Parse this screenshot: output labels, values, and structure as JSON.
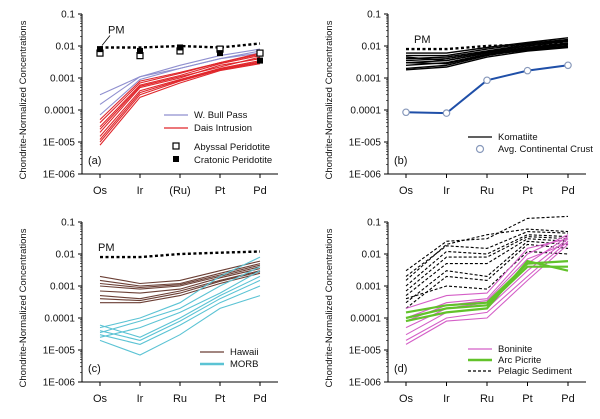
{
  "chart_data": [
    {
      "panel_label": "(a)",
      "type": "line",
      "ylabel": "Chondrite-Normalized Concentrations",
      "categories": [
        "Os",
        "Ir",
        "(Ru)",
        "Pt",
        "Pd"
      ],
      "yscale": "log",
      "ylim": [
        1e-06,
        0.1
      ],
      "ytick_labels": [
        "1E-006",
        "1E-005",
        "0.0001",
        "0.001",
        "0.01",
        "0.1"
      ],
      "pm_label": "PM",
      "pm_values": [
        0.009,
        0.009,
        0.01,
        0.009,
        0.012
      ],
      "legend": [
        {
          "label": "W. Bull Pass",
          "color": "#8f8fcf",
          "kind": "line"
        },
        {
          "label": "Dais Intrusion",
          "color": "#e0262b",
          "kind": "line"
        },
        {
          "label": "Abyssal Peridotite",
          "kind": "open-square"
        },
        {
          "label": "Cratonic Peridotite",
          "kind": "filled-square"
        }
      ],
      "series": [
        {
          "group": "W. Bull Pass",
          "color": "#8f8fcf",
          "values": [
            0.0003,
            0.0011,
            0.002,
            0.004,
            0.007
          ]
        },
        {
          "group": "W. Bull Pass",
          "color": "#8f8fcf",
          "values": [
            0.00015,
            0.0011,
            0.0025,
            0.005,
            0.008
          ]
        },
        {
          "group": "W. Bull Pass",
          "color": "#8f8fcf",
          "values": [
            7e-05,
            0.0009,
            0.002,
            0.004,
            0.006
          ]
        },
        {
          "group": "Dais Intrusion",
          "color": "#e0262b",
          "values": [
            5e-05,
            0.0008,
            0.0015,
            0.003,
            0.006
          ]
        },
        {
          "group": "Dais Intrusion",
          "color": "#e0262b",
          "values": [
            3e-05,
            0.0006,
            0.0012,
            0.0028,
            0.005
          ]
        },
        {
          "group": "Dais Intrusion",
          "color": "#e0262b",
          "values": [
            2e-05,
            0.0005,
            0.001,
            0.0025,
            0.004
          ]
        },
        {
          "group": "Dais Intrusion",
          "color": "#e0262b",
          "values": [
            1.5e-05,
            0.0004,
            0.0009,
            0.002,
            0.0035
          ]
        },
        {
          "group": "Dais Intrusion",
          "color": "#e0262b",
          "values": [
            1e-05,
            0.0003,
            0.0008,
            0.0018,
            0.003
          ]
        },
        {
          "group": "Dais Intrusion",
          "color": "#e0262b",
          "values": [
            8e-06,
            0.00025,
            0.0007,
            0.0017,
            0.0028
          ]
        },
        {
          "group": "Dais Intrusion",
          "color": "#e0262b",
          "values": [
            4e-05,
            0.0007,
            0.0014,
            0.003,
            0.0055
          ]
        },
        {
          "group": "Dais Intrusion",
          "color": "#e0262b",
          "values": [
            2.5e-05,
            0.00055,
            0.0011,
            0.0022,
            0.0045
          ]
        },
        {
          "group": "Dais Intrusion",
          "color": "#e0262b",
          "values": [
            1.2e-05,
            0.00035,
            0.00085,
            0.0019,
            0.0032
          ]
        }
      ],
      "abyssal_points": [
        0.006,
        0.005,
        0.007,
        0.008,
        0.006
      ],
      "cratonic_points": [
        0.008,
        0.007,
        0.009,
        0.006,
        0.0035
      ]
    },
    {
      "panel_label": "(b)",
      "type": "line",
      "ylabel": "Chondrite-Normalized Concentrations",
      "categories": [
        "Os",
        "Ir",
        "Ru",
        "Pt",
        "Pd"
      ],
      "yscale": "log",
      "ylim": [
        1e-06,
        0.1
      ],
      "ytick_labels": [
        "1E-006",
        "1E-005",
        "0.0001",
        "0.001",
        "0.01",
        "0.1"
      ],
      "pm_label": "PM",
      "pm_values": [
        0.008,
        0.008,
        0.01,
        0.011,
        0.012
      ],
      "legend": [
        {
          "label": "Komatiite",
          "color": "#000000",
          "kind": "line"
        },
        {
          "label": "Avg. Continental Crust",
          "color": "#8899bb",
          "kind": "open-circle"
        }
      ],
      "series": [
        {
          "group": "Komatiite",
          "color": "#000000",
          "values": [
            0.006,
            0.006,
            0.009,
            0.013,
            0.018
          ]
        },
        {
          "group": "Komatiite",
          "color": "#000000",
          "values": [
            0.005,
            0.005,
            0.008,
            0.012,
            0.016
          ]
        },
        {
          "group": "Komatiite",
          "color": "#000000",
          "values": [
            0.004,
            0.0045,
            0.007,
            0.011,
            0.015
          ]
        },
        {
          "group": "Komatiite",
          "color": "#000000",
          "values": [
            0.0035,
            0.004,
            0.0065,
            0.01,
            0.014
          ]
        },
        {
          "group": "Komatiite",
          "color": "#000000",
          "values": [
            0.003,
            0.0035,
            0.006,
            0.009,
            0.012
          ]
        },
        {
          "group": "Komatiite",
          "color": "#000000",
          "values": [
            0.0025,
            0.003,
            0.0055,
            0.0085,
            0.011
          ]
        },
        {
          "group": "Komatiite",
          "color": "#000000",
          "values": [
            0.002,
            0.0025,
            0.005,
            0.008,
            0.01
          ]
        },
        {
          "group": "Komatiite",
          "color": "#000000",
          "values": [
            0.0018,
            0.0022,
            0.0045,
            0.007,
            0.009
          ]
        },
        {
          "group": "Komatiite",
          "color": "#000000",
          "values": [
            0.0045,
            0.0035,
            0.006,
            0.009,
            0.0125
          ]
        },
        {
          "group": "Komatiite",
          "color": "#000000",
          "values": [
            0.003,
            0.0028,
            0.0052,
            0.0075,
            0.0095
          ]
        }
      ],
      "continental_crust": [
        8.5e-05,
        8e-05,
        0.00085,
        0.0017,
        0.0025
      ]
    },
    {
      "panel_label": "(c)",
      "type": "line",
      "ylabel": "Chondrite-Normalized Concentrations",
      "categories": [
        "Os",
        "Ir",
        "Ru",
        "Pt",
        "Pd"
      ],
      "yscale": "log",
      "ylim": [
        1e-06,
        0.1
      ],
      "ytick_labels": [
        "1E-006",
        "1E-005",
        "0.0001",
        "0.001",
        "0.01",
        "0.1"
      ],
      "pm_label": "PM",
      "pm_values": [
        0.008,
        0.008,
        0.01,
        0.011,
        0.012
      ],
      "legend": [
        {
          "label": "Hawaii",
          "color": "#6b3f35",
          "kind": "line"
        },
        {
          "label": "MORB",
          "color": "#5bc3d4",
          "kind": "line"
        }
      ],
      "series": [
        {
          "group": "Hawaii",
          "color": "#6b3f35",
          "values": [
            0.002,
            0.0012,
            0.0015,
            0.003,
            0.006
          ]
        },
        {
          "group": "Hawaii",
          "color": "#6b3f35",
          "values": [
            0.0015,
            0.001,
            0.0012,
            0.0025,
            0.005
          ]
        },
        {
          "group": "Hawaii",
          "color": "#6b3f35",
          "values": [
            0.001,
            0.0008,
            0.001,
            0.002,
            0.004
          ]
        },
        {
          "group": "Hawaii",
          "color": "#6b3f35",
          "values": [
            0.0007,
            0.0006,
            0.0008,
            0.0018,
            0.0035
          ]
        },
        {
          "group": "Hawaii",
          "color": "#6b3f35",
          "values": [
            0.0005,
            0.0004,
            0.0007,
            0.0015,
            0.003
          ]
        },
        {
          "group": "Hawaii",
          "color": "#6b3f35",
          "values": [
            0.0003,
            0.0003,
            0.0005,
            0.0012,
            0.0025
          ]
        },
        {
          "group": "Hawaii",
          "color": "#6b3f35",
          "values": [
            0.0012,
            0.0009,
            0.0011,
            0.0022,
            0.0045
          ]
        },
        {
          "group": "Hawaii",
          "color": "#6b3f35",
          "values": [
            0.0004,
            0.00035,
            0.0006,
            0.0014,
            0.0028
          ]
        },
        {
          "group": "MORB",
          "color": "#5bc3d4",
          "values": [
            6e-05,
            2.5e-05,
            0.0001,
            0.0005,
            0.002
          ]
        },
        {
          "group": "MORB",
          "color": "#5bc3d4",
          "values": [
            4e-05,
            2e-05,
            8e-05,
            0.0004,
            0.0015
          ]
        },
        {
          "group": "MORB",
          "color": "#5bc3d4",
          "values": [
            3e-05,
            1.5e-05,
            6e-05,
            0.0003,
            0.001
          ]
        },
        {
          "group": "MORB",
          "color": "#5bc3d4",
          "values": [
            2e-05,
            7e-06,
            3e-05,
            0.0002,
            0.0005
          ]
        },
        {
          "group": "MORB",
          "color": "#5bc3d4",
          "values": [
            5e-05,
            0.0001,
            0.0003,
            0.002,
            0.008
          ]
        },
        {
          "group": "MORB",
          "color": "#5bc3d4",
          "values": [
            3.5e-05,
            8e-05,
            0.0002,
            0.001,
            0.004
          ]
        },
        {
          "group": "MORB",
          "color": "#5bc3d4",
          "values": [
            2.5e-05,
            5e-05,
            0.00015,
            0.0006,
            0.003
          ]
        }
      ]
    },
    {
      "panel_label": "(d)",
      "type": "line",
      "ylabel": "Chondrite-Normalized Concentrations",
      "categories": [
        "Os",
        "Ir",
        "Ru",
        "Pt",
        "Pd"
      ],
      "yscale": "log",
      "ylim": [
        1e-06,
        0.1
      ],
      "ytick_labels": [
        "1E-006",
        "1E-005",
        "0.0001",
        "0.001",
        "0.01",
        "0.1"
      ],
      "legend": [
        {
          "label": "Boninite",
          "color": "#d45fc7",
          "kind": "line"
        },
        {
          "label": "Arc Picrite",
          "color": "#62c22a",
          "kind": "line"
        },
        {
          "label": "Pelagic Sediment",
          "color": "#000000",
          "kind": "dashed-line"
        }
      ],
      "series": [
        {
          "group": "Pelagic Sediment",
          "color": "#000000",
          "values": [
            0.003,
            0.025,
            0.03,
            0.13,
            0.15
          ]
        },
        {
          "group": "Pelagic Sediment",
          "color": "#000000",
          "values": [
            0.002,
            0.018,
            0.015,
            0.05,
            0.045
          ]
        },
        {
          "group": "Pelagic Sediment",
          "color": "#000000",
          "values": [
            0.001,
            0.012,
            0.01,
            0.04,
            0.035
          ]
        },
        {
          "group": "Pelagic Sediment",
          "color": "#000000",
          "values": [
            0.0007,
            0.008,
            0.008,
            0.035,
            0.03
          ]
        },
        {
          "group": "Pelagic Sediment",
          "color": "#000000",
          "values": [
            0.0005,
            0.005,
            0.005,
            0.03,
            0.025
          ]
        },
        {
          "group": "Pelagic Sediment",
          "color": "#000000",
          "values": [
            0.0003,
            0.003,
            0.002,
            0.025,
            0.02
          ]
        },
        {
          "group": "Pelagic Sediment",
          "color": "#000000",
          "values": [
            0.0015,
            0.02,
            0.04,
            0.06,
            0.05
          ]
        },
        {
          "group": "Pelagic Sediment",
          "color": "#000000",
          "values": [
            0.0002,
            0.002,
            0.0015,
            0.02,
            0.015
          ]
        },
        {
          "group": "Pelagic Sediment",
          "color": "#000000",
          "values": [
            0.0004,
            0.001,
            0.0008,
            0.012,
            0.01
          ]
        },
        {
          "group": "Boninite",
          "color": "#d45fc7",
          "values": [
            0.0001,
            0.0003,
            0.0004,
            0.01,
            0.04
          ]
        },
        {
          "group": "Boninite",
          "color": "#d45fc7",
          "values": [
            5e-05,
            0.0002,
            0.0003,
            0.005,
            0.035
          ]
        },
        {
          "group": "Boninite",
          "color": "#d45fc7",
          "values": [
            3e-05,
            0.00015,
            0.0002,
            0.003,
            0.03
          ]
        },
        {
          "group": "Boninite",
          "color": "#d45fc7",
          "values": [
            2e-05,
            0.0001,
            0.00015,
            0.002,
            0.025
          ]
        },
        {
          "group": "Boninite",
          "color": "#d45fc7",
          "values": [
            1.5e-05,
            8e-05,
            0.0001,
            0.0015,
            0.02
          ]
        },
        {
          "group": "Boninite",
          "color": "#d45fc7",
          "values": [
            0.0002,
            0.0005,
            0.0006,
            0.015,
            0.03
          ]
        },
        {
          "group": "Boninite",
          "color": "#d45fc7",
          "values": [
            8e-05,
            0.00025,
            0.00035,
            0.007,
            0.022
          ]
        },
        {
          "group": "Arc Picrite",
          "color": "#62c22a",
          "values": [
            0.00015,
            0.00025,
            0.0003,
            0.005,
            0.006
          ]
        },
        {
          "group": "Arc Picrite",
          "color": "#62c22a",
          "values": [
            0.0001,
            0.0002,
            0.00025,
            0.004,
            0.004
          ]
        },
        {
          "group": "Arc Picrite",
          "color": "#62c22a",
          "values": [
            8e-05,
            0.00015,
            0.0002,
            0.006,
            0.003
          ]
        }
      ]
    }
  ]
}
